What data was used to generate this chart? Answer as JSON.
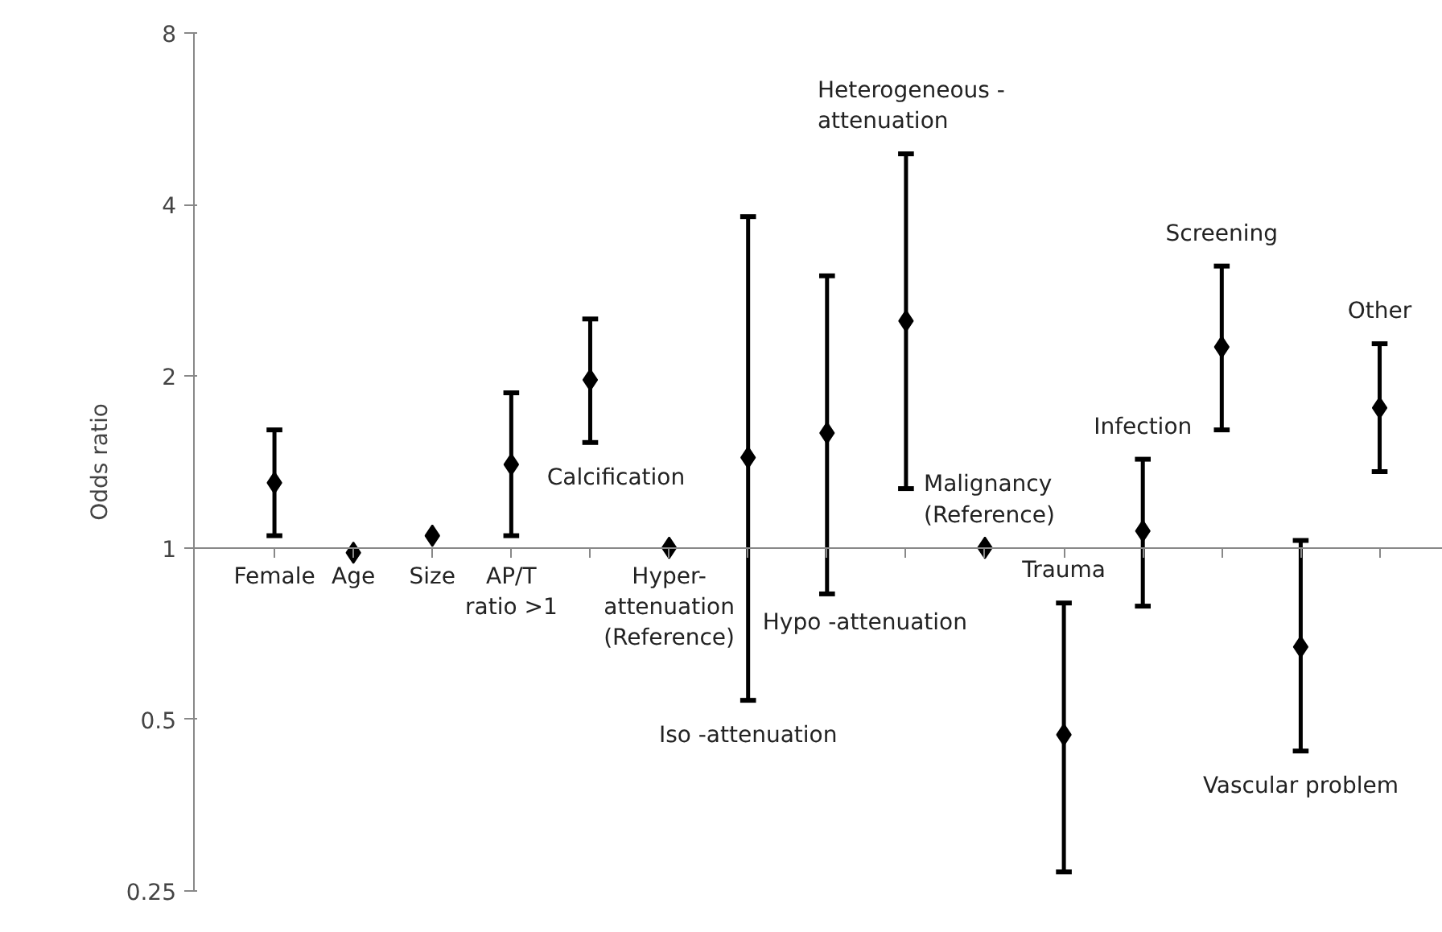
{
  "chart_data": {
    "type": "scatter",
    "ylabel": "Odds ratio",
    "log": "y",
    "ylim": [
      0.25,
      8
    ],
    "yticks": [
      0.25,
      0.5,
      1,
      2,
      4,
      8
    ],
    "grid": false,
    "marker": "diamond",
    "categories": [
      "Female",
      "Age",
      "Size",
      "AP/T\nratio >1",
      "Calcification",
      "Hyper-\nattenuation\n(Reference)",
      "Iso -attenuation",
      "Hypo -attenuation",
      "Heterogeneous -\nattenuation",
      "Malignancy\n(Reference)",
      "Trauma",
      "Infection",
      "Screening",
      "Vascular problem",
      "Other"
    ],
    "series": [
      {
        "color": "#000000",
        "values": [
          1.3,
          0.98,
          1.05,
          1.4,
          1.97,
          1.0,
          1.44,
          1.59,
          2.5,
          1.0,
          0.47,
          1.07,
          2.25,
          0.67,
          1.76
        ],
        "errors": [
          [
            1.05,
            1.61
          ],
          null,
          null,
          [
            1.05,
            1.87
          ],
          [
            1.53,
            2.52
          ],
          null,
          [
            0.54,
            3.81
          ],
          [
            0.83,
            3.0
          ],
          [
            1.27,
            4.91
          ],
          null,
          [
            0.27,
            0.8
          ],
          [
            0.79,
            1.43
          ],
          [
            1.61,
            3.12
          ],
          [
            0.44,
            1.03
          ],
          [
            1.36,
            2.28
          ]
        ]
      }
    ]
  }
}
